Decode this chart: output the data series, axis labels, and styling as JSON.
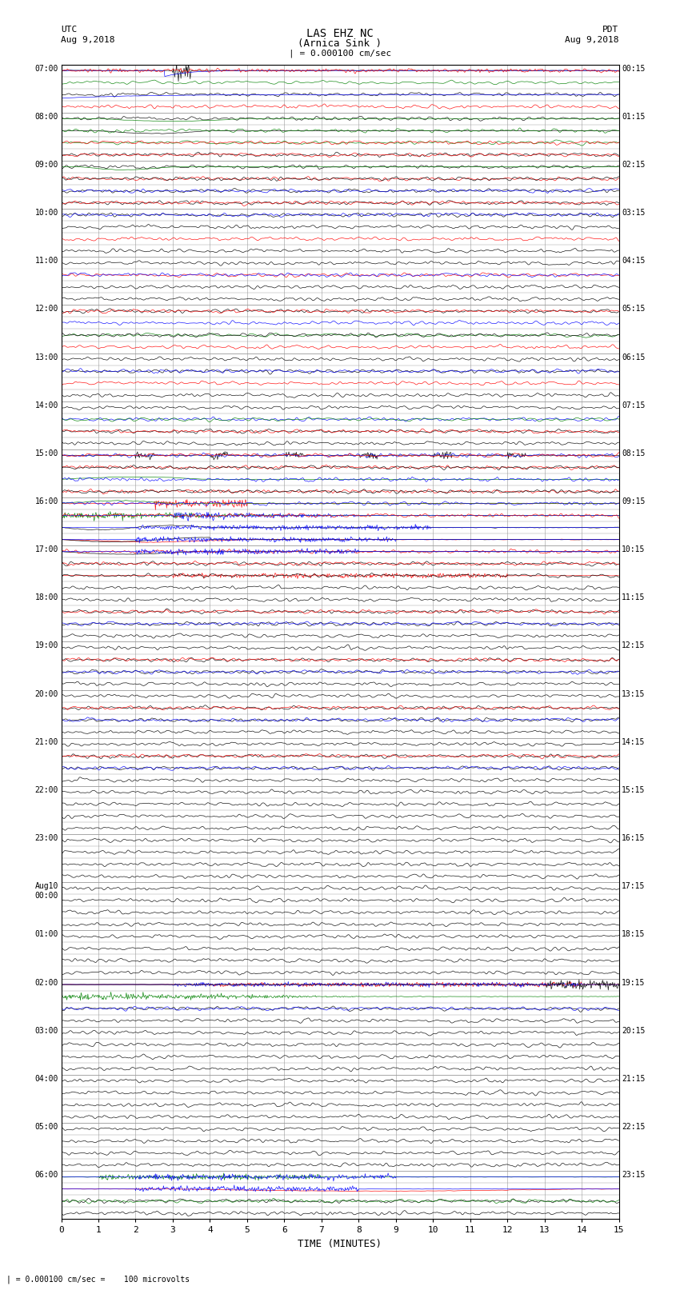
{
  "title_line1": "LAS EHZ NC",
  "title_line2": "(Arnica Sink )",
  "scale_label": "| = 0.000100 cm/sec",
  "left_label1": "UTC",
  "left_label2": "Aug 9,2018",
  "right_label1": "PDT",
  "right_label2": "Aug 9,2018",
  "xlabel": "TIME (MINUTES)",
  "footnote": "| = 0.000100 cm/sec =    100 microvolts",
  "bg_color": "#ffffff",
  "grid_color": "#999999",
  "n_cols": 15,
  "n_rows": 48,
  "utc_row_labels": {
    "0": "07:00",
    "4": "08:00",
    "8": "09:00",
    "12": "10:00",
    "16": "11:00",
    "20": "12:00",
    "24": "13:00",
    "28": "14:00",
    "32": "15:00",
    "36": "16:00",
    "40": "17:00",
    "44": "18:00",
    "48": "19:00",
    "52": "20:00",
    "56": "21:00",
    "60": "22:00",
    "64": "23:00",
    "68": "Aug10\n00:00",
    "72": "01:00",
    "76": "02:00",
    "80": "03:00",
    "84": "04:00",
    "88": "05:00",
    "92": "06:00"
  },
  "pdt_row_labels": {
    "0": "00:15",
    "4": "01:15",
    "8": "02:15",
    "12": "03:15",
    "16": "04:15",
    "20": "05:15",
    "24": "06:15",
    "28": "07:15",
    "32": "08:15",
    "36": "09:15",
    "40": "10:15",
    "44": "11:15",
    "48": "12:15",
    "52": "13:15",
    "56": "14:15",
    "60": "15:15",
    "64": "16:15",
    "68": "17:15",
    "72": "18:15",
    "76": "19:15",
    "80": "20:15",
    "84": "21:15",
    "88": "22:15",
    "92": "23:15"
  }
}
